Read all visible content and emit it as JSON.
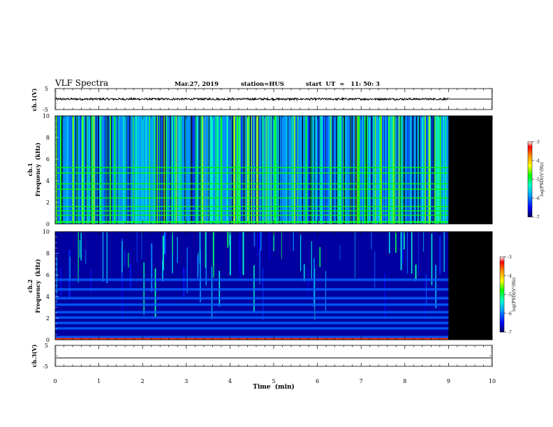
{
  "header": {
    "title": "VLF Spectra",
    "date": "Mar.27, 2019",
    "station": "station=HUS",
    "start": "start  UT  =   11: 50: 3"
  },
  "chart_data": [
    {
      "type": "line",
      "panel": "ch1-waveform",
      "ylabel": "ch.1(V)",
      "ylim": [
        -5,
        5
      ],
      "yticks": [
        5,
        -5
      ],
      "data_end_min": 9.0,
      "series": [
        {
          "values_summary": "noisy trace around 0 V (about ±0.4 V) until 9.0 min, then flat at 0 V"
        }
      ]
    },
    {
      "type": "heatmap",
      "panel": "ch1-spectrogram",
      "ylabel_line1": "ch.1",
      "ylabel_line2": "Frequency  (kHz)",
      "ylim": [
        0,
        10
      ],
      "yticks": [
        0,
        2,
        4,
        6,
        8,
        10
      ],
      "xlim": [
        0,
        10
      ],
      "data_end_min": 9.0,
      "colorbar": {
        "label": "log(PSD)(V²/Hz)",
        "range": [
          -7,
          -3
        ],
        "ticks": [
          -3,
          -4,
          -5,
          -6,
          -7
        ]
      },
      "dominant_level": -5.3,
      "features": "broadband impulsive sferics all minutes, strongest bursts near 4.0–4.4 min; horizontal interference lines near 0.8, 1.2, 1.6, 2.4, 3.2, 3.7, 4.7, 5.2 kHz; strong line near 0.2 kHz"
    },
    {
      "type": "heatmap",
      "panel": "ch2-spectrogram",
      "ylabel_line1": "ch.2",
      "ylabel_line2": "Frequency  (kHz)",
      "ylim": [
        0,
        10
      ],
      "yticks": [
        0,
        2,
        4,
        6,
        8,
        10
      ],
      "xlim": [
        0,
        10
      ],
      "data_end_min": 9.0,
      "colorbar": {
        "label": "log(PSD)(V²/Hz)",
        "range": [
          -7,
          -3
        ],
        "ticks": [
          -3,
          -4,
          -5,
          -6,
          -7
        ]
      },
      "dominant_level": -6.8,
      "features": "mostly weak; horizontal interference bands near 0.3, 1.1, 1.6, 2.1, 2.6, 3.3, 3.9, 4.7, 5.6 kHz; sparse sferic streaks above 6 kHz"
    },
    {
      "type": "line",
      "panel": "ch3-waveform",
      "ylabel": "ch.3(V)",
      "ylim": [
        -5,
        5
      ],
      "yticks": [
        5,
        -5
      ],
      "xlabel": "Time  (min)",
      "xlim": [
        0,
        10
      ],
      "xticks": [
        0,
        1,
        2,
        3,
        4,
        5,
        6,
        7,
        8,
        9,
        10
      ],
      "series": [
        {
          "values_summary": "flat at 0 V across 0–10 min"
        }
      ]
    }
  ]
}
